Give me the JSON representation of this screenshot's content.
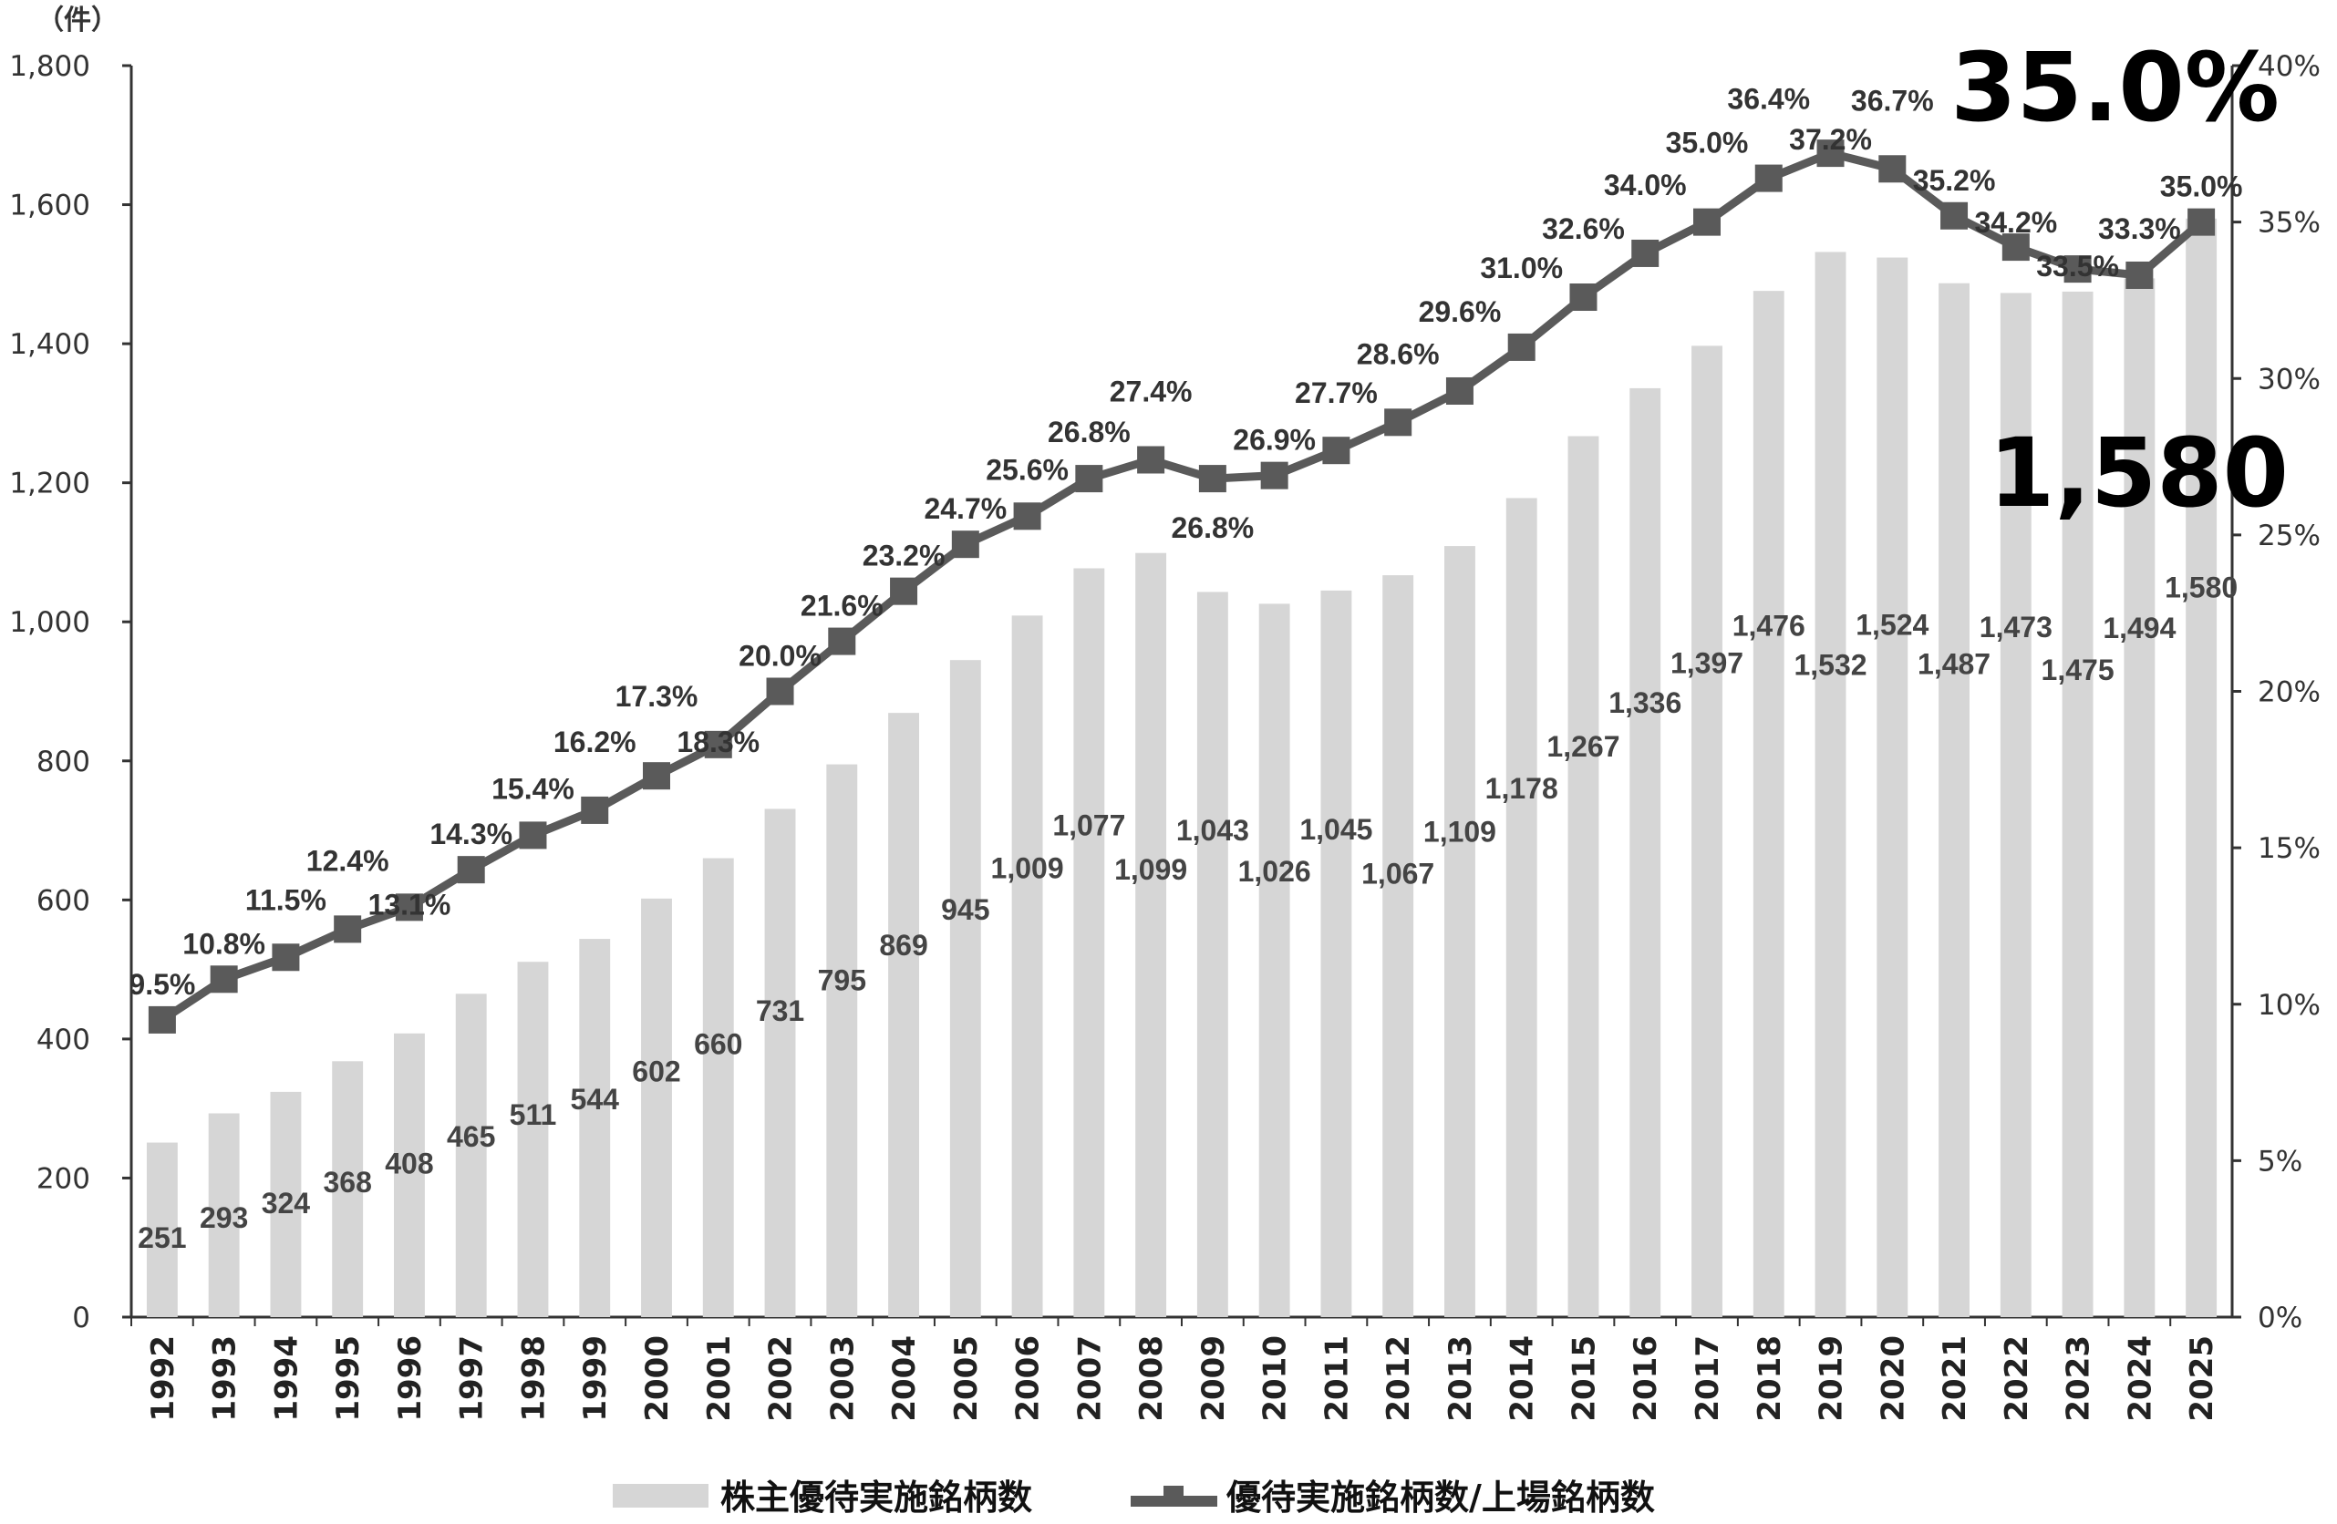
{
  "chart_data": {
    "type": "bar+line",
    "unit_label": "（件）",
    "categories": [
      "1992",
      "1993",
      "1994",
      "1995",
      "1996",
      "1997",
      "1998",
      "1999",
      "2000",
      "2001",
      "2002",
      "2003",
      "2004",
      "2005",
      "2006",
      "2007",
      "2008",
      "2009",
      "2010",
      "2011",
      "2012",
      "2013",
      "2014",
      "2015",
      "2016",
      "2017",
      "2018",
      "2019",
      "2020",
      "2021",
      "2022",
      "2023",
      "2024",
      "2025"
    ],
    "series": [
      {
        "name": "株主優待実施銘柄数",
        "type": "bar",
        "axis": "left",
        "color": "#d6d6d6",
        "values": [
          251,
          293,
          324,
          368,
          408,
          465,
          511,
          544,
          602,
          660,
          731,
          795,
          869,
          945,
          1009,
          1077,
          1099,
          1043,
          1026,
          1045,
          1067,
          1109,
          1178,
          1267,
          1336,
          1397,
          1476,
          1532,
          1524,
          1487,
          1473,
          1475,
          1494,
          1580
        ],
        "labels": [
          "251",
          "293",
          "324",
          "368",
          "408",
          "465",
          "511",
          "544",
          "602",
          "660",
          "731",
          "795",
          "869",
          "945",
          "1,009",
          "1,077",
          "1,099",
          "1,043",
          "1,026",
          "1,045",
          "1,067",
          "1,109",
          "1,178",
          "1,267",
          "1,336",
          "1,397",
          "1,476",
          "1,532",
          "1,524",
          "1,487",
          "1,473",
          "1,475",
          "1,494",
          "1,580"
        ]
      },
      {
        "name": "優待実施銘柄数/上場銘柄数",
        "type": "line",
        "axis": "right",
        "color": "#5a5a5a",
        "values": [
          9.5,
          10.8,
          11.5,
          12.4,
          13.1,
          14.3,
          15.4,
          16.2,
          17.3,
          18.3,
          20.0,
          21.6,
          23.2,
          24.7,
          25.6,
          26.8,
          27.4,
          26.8,
          26.9,
          27.7,
          28.6,
          29.6,
          31.0,
          32.6,
          34.0,
          35.0,
          36.4,
          37.2,
          36.7,
          35.2,
          34.2,
          33.5,
          33.3,
          35.0
        ],
        "labels": [
          "9.5%",
          "10.8%",
          "11.5%",
          "12.4%",
          "13.1%",
          "14.3%",
          "15.4%",
          "16.2%",
          "17.3%",
          "18.3%",
          "20.0%",
          "21.6%",
          "23.2%",
          "24.7%",
          "25.6%",
          "26.8%",
          "27.4%",
          "26.8%",
          "26.9%",
          "27.7%",
          "28.6%",
          "29.6%",
          "31.0%",
          "32.6%",
          "34.0%",
          "35.0%",
          "36.4%",
          "37.2%",
          "36.7%",
          "35.2%",
          "34.2%",
          "33.5%",
          "33.3%",
          "35.0%"
        ]
      }
    ],
    "left_axis": {
      "ylim": [
        0,
        1800
      ],
      "ticks": [
        "0",
        "200",
        "400",
        "600",
        "800",
        "1,000",
        "1,200",
        "1,400",
        "1,600",
        "1,800"
      ]
    },
    "right_axis": {
      "ylim": [
        0,
        40
      ],
      "ticks": [
        "0%",
        "5%",
        "10%",
        "15%",
        "20%",
        "25%",
        "30%",
        "35%",
        "40%"
      ]
    },
    "highlight": {
      "percent": "35.0%",
      "count": "1,580"
    },
    "legend": {
      "position": "bottom"
    },
    "grid": false
  }
}
